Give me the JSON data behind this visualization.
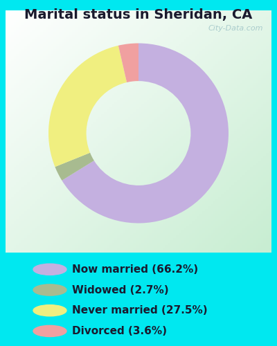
{
  "title": "Marital status in Sheridan, CA",
  "slices": [
    66.2,
    2.7,
    27.5,
    3.6
  ],
  "labels": [
    "Now married (66.2%)",
    "Widowed (2.7%)",
    "Never married (27.5%)",
    "Divorced (3.6%)"
  ],
  "colors": [
    "#c4b0e0",
    "#a8bb90",
    "#f0ef80",
    "#f0a0a0"
  ],
  "background_cyan": "#00e8f0",
  "background_chart_color": "#d0eed8",
  "title_fontsize": 14,
  "legend_fontsize": 11,
  "donut_width": 0.42,
  "startangle": 90,
  "watermark": "City-Data.com",
  "watermark_color": "#aacccc"
}
